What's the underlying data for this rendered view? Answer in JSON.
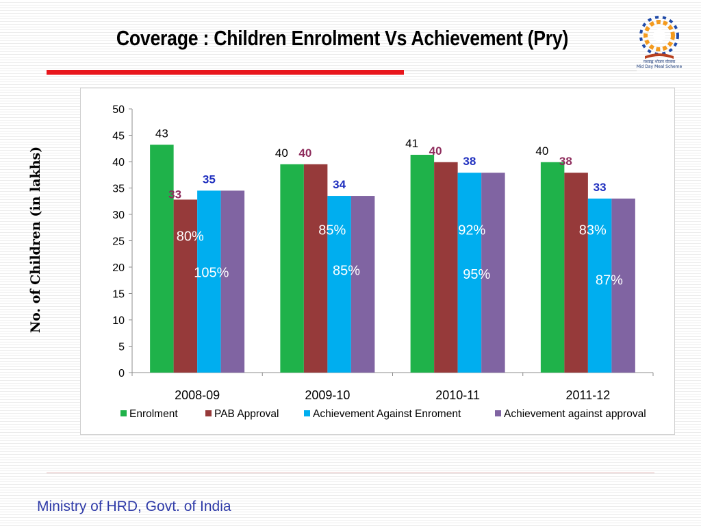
{
  "slide": {
    "title": "Coverage : Children Enrolment Vs Achievement (Pry)",
    "footer": "Ministry of HRD, Govt. of India",
    "logo_caption_hindi": "मध्याह्न भोजन योजना",
    "logo_caption_english": "Mid Day Meal Scheme"
  },
  "colors": {
    "title_rule": "#e8161c",
    "footer_text": "#2f3ba8"
  },
  "chart_data": {
    "type": "bar",
    "title": "",
    "ylabel": "No. of Children (in lakhs)",
    "xlabel": "",
    "ylim": [
      0,
      50
    ],
    "yticks": [
      0,
      5,
      10,
      15,
      20,
      25,
      30,
      35,
      40,
      45,
      50
    ],
    "categories": [
      "2008-09",
      "2009-10",
      "2010-11",
      "2011-12"
    ],
    "legend_position": "bottom",
    "grid": false,
    "series": [
      {
        "name": "Enrolment",
        "color": "#1fb24a",
        "label_color": "#000000",
        "values": [
          43.2,
          39.5,
          41.3,
          39.9
        ],
        "labels": [
          "43",
          "40",
          "41",
          "40"
        ]
      },
      {
        "name": "PAB Approval",
        "color": "#963a3a",
        "label_color": "#8e2c5c",
        "values": [
          32.8,
          39.5,
          39.9,
          37.9
        ],
        "labels": [
          "33",
          "40",
          "40",
          "38"
        ]
      },
      {
        "name": "Achievement Against Enroment",
        "color": "#00aeef",
        "label_color": "#1f2fbf",
        "values": [
          34.5,
          33.5,
          37.9,
          33.0
        ],
        "labels": [
          "35",
          "34",
          "38",
          "33"
        ]
      },
      {
        "name": "Achievement against approval",
        "color": "#8064a2",
        "label_color": "#000000",
        "values": [
          34.5,
          33.5,
          37.9,
          33.0
        ],
        "labels": [
          "",
          "",
          "",
          ""
        ]
      }
    ],
    "annotations": {
      "pab_vs_enrolment": [
        "80%",
        "85%",
        "92%",
        "83%"
      ],
      "achievement_vs_approval": [
        "105%",
        "85%",
        "95%",
        "87%"
      ],
      "color": "#ffffff"
    }
  }
}
